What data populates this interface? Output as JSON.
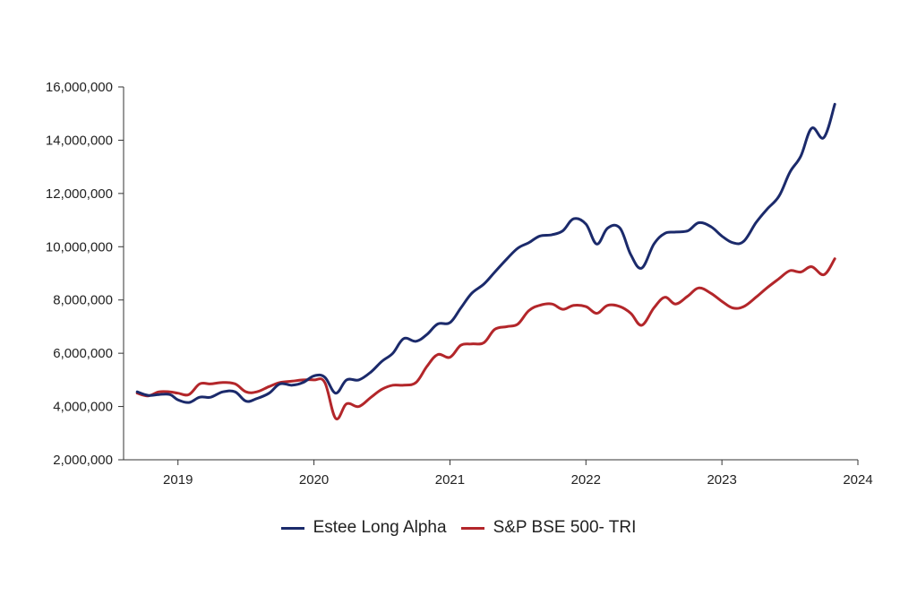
{
  "chart_data": {
    "type": "line",
    "title": "",
    "xlabel": "",
    "ylabel": "",
    "x_ticks": [
      "2019",
      "2020",
      "2021",
      "2022",
      "2023",
      "2024"
    ],
    "y_ticks": [
      "2,000,000",
      "4,000,000",
      "6,000,000",
      "8,000,000",
      "10,000,000",
      "12,000,000",
      "14,000,000",
      "16,000,000"
    ],
    "xlim": [
      2018.6,
      2024.0
    ],
    "ylim": [
      2000000,
      16000000
    ],
    "grid": false,
    "legend_position": "bottom",
    "series": [
      {
        "name": "Estee Long Alpha",
        "color": "#1b2a6b",
        "x": [
          2018.7,
          2018.78,
          2018.86,
          2018.94,
          2019.0,
          2019.08,
          2019.16,
          2019.24,
          2019.33,
          2019.42,
          2019.5,
          2019.58,
          2019.67,
          2019.75,
          2019.84,
          2019.92,
          2020.0,
          2020.08,
          2020.16,
          2020.24,
          2020.33,
          2020.42,
          2020.5,
          2020.58,
          2020.66,
          2020.75,
          2020.83,
          2020.91,
          2021.0,
          2021.08,
          2021.16,
          2021.25,
          2021.33,
          2021.42,
          2021.5,
          2021.58,
          2021.66,
          2021.75,
          2021.83,
          2021.91,
          2022.0,
          2022.08,
          2022.16,
          2022.25,
          2022.33,
          2022.41,
          2022.5,
          2022.58,
          2022.66,
          2022.75,
          2022.83,
          2022.92,
          2023.0,
          2023.08,
          2023.16,
          2023.25,
          2023.33,
          2023.42,
          2023.5,
          2023.58,
          2023.66,
          2023.75,
          2023.83
        ],
        "values": [
          4550000,
          4420000,
          4450000,
          4450000,
          4250000,
          4150000,
          4350000,
          4350000,
          4550000,
          4550000,
          4200000,
          4300000,
          4500000,
          4850000,
          4800000,
          4900000,
          5150000,
          5100000,
          4500000,
          5000000,
          5000000,
          5300000,
          5700000,
          6000000,
          6550000,
          6450000,
          6700000,
          7100000,
          7150000,
          7700000,
          8250000,
          8600000,
          9050000,
          9550000,
          9950000,
          10150000,
          10400000,
          10450000,
          10600000,
          11050000,
          10850000,
          10100000,
          10700000,
          10700000,
          9700000,
          9200000,
          10100000,
          10500000,
          10550000,
          10600000,
          10900000,
          10750000,
          10400000,
          10150000,
          10200000,
          10900000,
          11400000,
          11900000,
          12800000,
          13400000,
          14450000,
          14100000,
          15350000
        ]
      },
      {
        "name": "S&P BSE 500- TRI",
        "color": "#b3262a",
        "x": [
          2018.7,
          2018.78,
          2018.86,
          2018.94,
          2019.0,
          2019.08,
          2019.16,
          2019.24,
          2019.33,
          2019.42,
          2019.5,
          2019.58,
          2019.67,
          2019.75,
          2019.84,
          2019.92,
          2020.0,
          2020.08,
          2020.16,
          2020.24,
          2020.33,
          2020.42,
          2020.5,
          2020.58,
          2020.66,
          2020.75,
          2020.83,
          2020.91,
          2021.0,
          2021.08,
          2021.16,
          2021.25,
          2021.33,
          2021.42,
          2021.5,
          2021.58,
          2021.66,
          2021.75,
          2021.83,
          2021.91,
          2022.0,
          2022.08,
          2022.16,
          2022.25,
          2022.33,
          2022.41,
          2022.5,
          2022.58,
          2022.66,
          2022.75,
          2022.83,
          2022.92,
          2023.0,
          2023.08,
          2023.16,
          2023.25,
          2023.33,
          2023.42,
          2023.5,
          2023.58,
          2023.66,
          2023.75,
          2023.83
        ],
        "values": [
          4500000,
          4400000,
          4550000,
          4550000,
          4500000,
          4450000,
          4850000,
          4850000,
          4900000,
          4850000,
          4550000,
          4550000,
          4750000,
          4900000,
          4950000,
          5000000,
          5000000,
          4900000,
          3550000,
          4100000,
          4000000,
          4350000,
          4650000,
          4800000,
          4800000,
          4900000,
          5500000,
          5950000,
          5850000,
          6300000,
          6350000,
          6400000,
          6900000,
          7000000,
          7100000,
          7600000,
          7800000,
          7850000,
          7650000,
          7800000,
          7750000,
          7500000,
          7800000,
          7750000,
          7500000,
          7050000,
          7700000,
          8100000,
          7850000,
          8150000,
          8450000,
          8250000,
          7950000,
          7700000,
          7750000,
          8100000,
          8450000,
          8800000,
          9100000,
          9050000,
          9250000,
          8950000,
          9550000
        ]
      }
    ]
  }
}
